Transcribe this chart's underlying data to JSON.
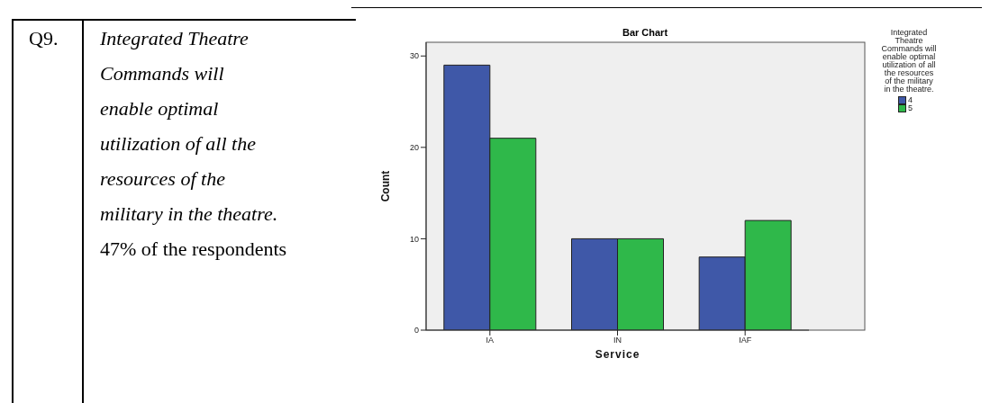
{
  "chart_data": {
    "type": "bar",
    "title": "Bar Chart",
    "xlabel": "Service",
    "ylabel": "Count",
    "legend_title": "Integrated Theatre Commands will enable optimal utilization of all the resources of the military in the theatre.",
    "categories": [
      "IA",
      "IN",
      "IAF"
    ],
    "series": [
      {
        "name": "4",
        "color": "#3f58a8",
        "values": [
          29,
          10,
          8
        ]
      },
      {
        "name": "5",
        "color": "#2fb84a",
        "values": [
          21,
          10,
          12
        ]
      }
    ],
    "ylim": [
      0,
      31.5
    ],
    "yticks": [
      0,
      10,
      20,
      30
    ],
    "grid": false,
    "legend": "right",
    "annotations": [
      "Q9.",
      "Integrated Theatre Commands will enable optimal utilization of all the resources of the military in the theatre.",
      "47% of the respondents"
    ]
  }
}
